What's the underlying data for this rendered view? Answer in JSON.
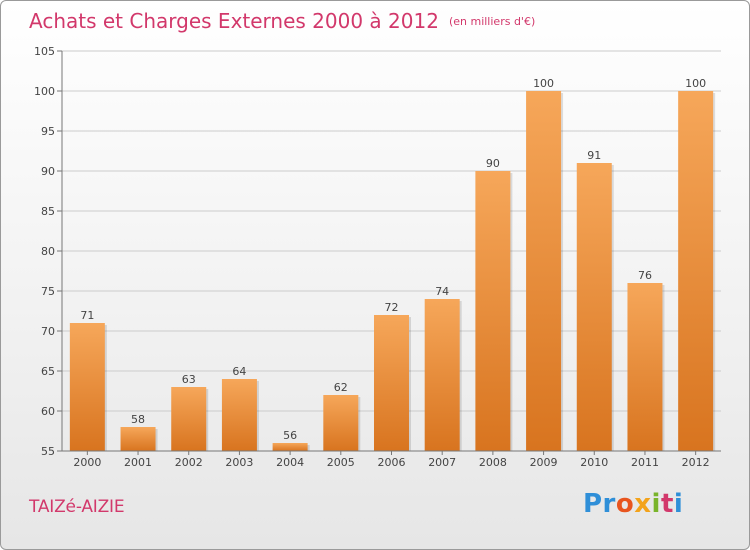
{
  "header": {
    "title": "Achats et Charges Externes 2000 à 2012",
    "unit": "(en milliers d'€)"
  },
  "footer": {
    "town": "TAIZé-AIZIE",
    "logo": [
      "Pr",
      "o",
      "x",
      "i",
      "t",
      "i"
    ]
  },
  "colors": {
    "accent": "#d2386b",
    "bar_light": "#f6a75a",
    "bar_dark": "#d8741f",
    "grid": "#cccccc"
  },
  "chart_data": {
    "type": "bar",
    "title": "Achats et Charges Externes 2000 à 2012",
    "subtitle": "(en milliers d'€)",
    "xlabel": "",
    "ylabel": "",
    "categories": [
      "2000",
      "2001",
      "2002",
      "2003",
      "2004",
      "2005",
      "2006",
      "2007",
      "2008",
      "2009",
      "2010",
      "2011",
      "2012"
    ],
    "values": [
      71,
      58,
      63,
      64,
      56,
      62,
      72,
      74,
      90,
      100,
      91,
      76,
      100
    ],
    "ylim": [
      55,
      105
    ],
    "yticks": [
      55,
      60,
      65,
      70,
      75,
      80,
      85,
      90,
      95,
      100,
      105
    ],
    "grid": true,
    "legend": "none"
  }
}
